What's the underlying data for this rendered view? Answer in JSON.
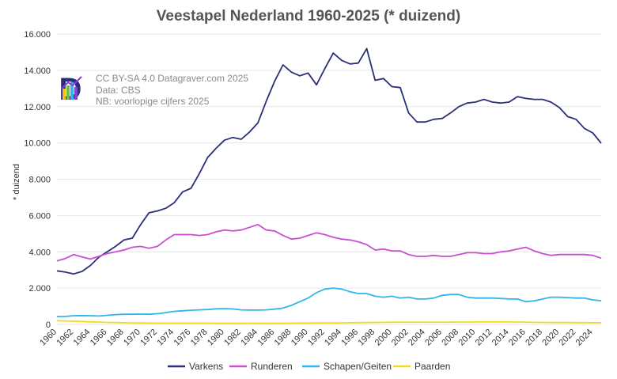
{
  "chart_data": {
    "type": "line",
    "title": "Veestapel Nederland 1960-2025 (* duizend)",
    "ylabel": "* duizend",
    "xlabel": "",
    "xlim": [
      1960,
      2025
    ],
    "ylim": [
      0,
      16000
    ],
    "y_ticks": [
      0,
      2000,
      4000,
      6000,
      8000,
      10000,
      12000,
      14000,
      16000
    ],
    "y_tick_labels": [
      "0",
      "2.000",
      "4.000",
      "6.000",
      "8.000",
      "10.000",
      "12.000",
      "14.000",
      "16.000"
    ],
    "x_ticks": [
      1960,
      1962,
      1964,
      1966,
      1968,
      1970,
      1972,
      1974,
      1976,
      1978,
      1980,
      1982,
      1984,
      1986,
      1988,
      1990,
      1992,
      1994,
      1996,
      1998,
      2000,
      2002,
      2004,
      2006,
      2008,
      2010,
      2012,
      2014,
      2016,
      2018,
      2020,
      2022,
      2024
    ],
    "x": [
      1960,
      1961,
      1962,
      1963,
      1964,
      1965,
      1966,
      1967,
      1968,
      1969,
      1970,
      1971,
      1972,
      1973,
      1974,
      1975,
      1976,
      1977,
      1978,
      1979,
      1980,
      1981,
      1982,
      1983,
      1984,
      1985,
      1986,
      1987,
      1988,
      1989,
      1990,
      1991,
      1992,
      1993,
      1994,
      1995,
      1996,
      1997,
      1998,
      1999,
      2000,
      2001,
      2002,
      2003,
      2004,
      2005,
      2006,
      2007,
      2008,
      2009,
      2010,
      2011,
      2012,
      2013,
      2014,
      2015,
      2016,
      2017,
      2018,
      2019,
      2020,
      2021,
      2022,
      2023,
      2024,
      2025
    ],
    "series": [
      {
        "name": "Varkens",
        "color": "#2a2f7a",
        "values": [
          2950,
          2880,
          2780,
          2920,
          3250,
          3700,
          4000,
          4300,
          4650,
          4750,
          5500,
          6150,
          6250,
          6400,
          6700,
          7300,
          7500,
          8300,
          9200,
          9700,
          10150,
          10300,
          10200,
          10600,
          11100,
          12300,
          13400,
          14300,
          13900,
          13700,
          13850,
          13200,
          14100,
          14950,
          14550,
          14350,
          14400,
          15200,
          13450,
          13550,
          13100,
          13050,
          11650,
          11150,
          11150,
          11300,
          11350,
          11650,
          12000,
          12200,
          12250,
          12400,
          12250,
          12200,
          12250,
          12550,
          12450,
          12400,
          12400,
          12250,
          11950,
          11450,
          11300,
          10800,
          10550,
          9980
        ]
      },
      {
        "name": "Runderen",
        "color": "#c94fd0",
        "values": [
          3500,
          3630,
          3850,
          3720,
          3600,
          3750,
          3900,
          4000,
          4100,
          4250,
          4300,
          4200,
          4300,
          4650,
          4950,
          4950,
          4950,
          4900,
          4950,
          5100,
          5200,
          5150,
          5200,
          5350,
          5500,
          5200,
          5150,
          4900,
          4700,
          4750,
          4900,
          5050,
          4950,
          4800,
          4700,
          4650,
          4550,
          4400,
          4100,
          4150,
          4050,
          4050,
          3850,
          3750,
          3750,
          3800,
          3750,
          3750,
          3850,
          3950,
          3950,
          3900,
          3900,
          4000,
          4050,
          4150,
          4250,
          4050,
          3900,
          3800,
          3850,
          3850,
          3850,
          3850,
          3800,
          3650
        ]
      },
      {
        "name": "Schapen/Geiten",
        "color": "#2fb6ea",
        "values": [
          430,
          440,
          480,
          490,
          480,
          460,
          500,
          540,
          560,
          560,
          570,
          560,
          590,
          650,
          720,
          750,
          780,
          800,
          820,
          860,
          870,
          850,
          800,
          790,
          790,
          800,
          840,
          900,
          1050,
          1250,
          1450,
          1750,
          1950,
          2000,
          1950,
          1800,
          1700,
          1700,
          1550,
          1500,
          1550,
          1450,
          1500,
          1400,
          1400,
          1450,
          1600,
          1650,
          1650,
          1500,
          1450,
          1450,
          1450,
          1430,
          1400,
          1400,
          1250,
          1300,
          1400,
          1500,
          1500,
          1480,
          1450,
          1450,
          1350,
          1300
        ]
      },
      {
        "name": "Paarden",
        "color": "#f2dc1a",
        "values": [
          200,
          190,
          180,
          160,
          140,
          130,
          110,
          100,
          90,
          85,
          80,
          75,
          70,
          70,
          70,
          70,
          70,
          70,
          70,
          65,
          65,
          65,
          65,
          65,
          65,
          65,
          65,
          65,
          70,
          75,
          75,
          80,
          80,
          80,
          85,
          90,
          95,
          100,
          110,
          115,
          120,
          125,
          125,
          125,
          125,
          125,
          125,
          125,
          130,
          130,
          135,
          135,
          135,
          135,
          135,
          130,
          125,
          115,
          110,
          105,
          100,
          100,
          95,
          95,
          90,
          90
        ]
      }
    ],
    "legend_position": "bottom-center",
    "grid": true
  },
  "credits": {
    "license": "CC BY-SA 4.0 Datagraver.com 2025",
    "source": "Data: CBS",
    "note": "NB: voorlopige cijfers 2025"
  },
  "logo_letter": "D",
  "colors": {
    "logo_dark": "#2a2f7a",
    "logo_accent": "#8b3fcf"
  }
}
